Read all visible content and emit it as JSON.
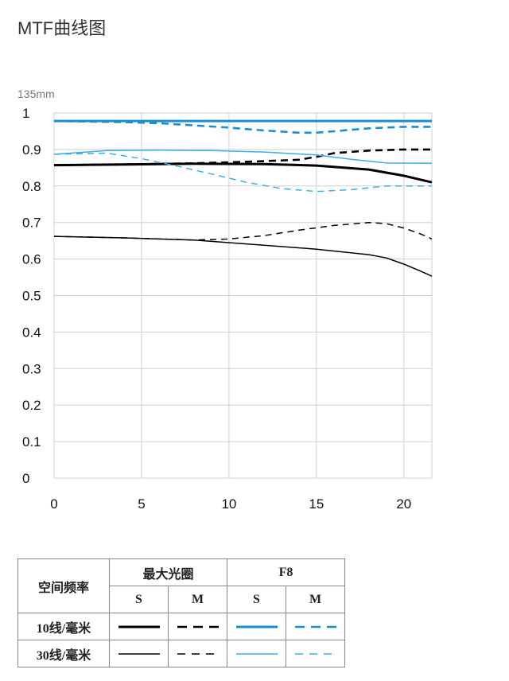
{
  "page": {
    "title": "MTF曲线图"
  },
  "chart_data": {
    "type": "line",
    "focal_label": "135mm",
    "xlim": [
      0,
      21.6
    ],
    "ylim": [
      0,
      1
    ],
    "x_ticks": [
      "0",
      "5",
      "10",
      "15",
      "20"
    ],
    "y_ticks": [
      "1",
      "0.9",
      "0.8",
      "0.7",
      "0.6",
      "0.5",
      "0.4",
      "0.3",
      "0.2",
      "0.1",
      "0"
    ],
    "grid": true,
    "series": [
      {
        "name": "最大光圈 10线/毫米 S",
        "color": "#000000",
        "width": 3,
        "dash": "",
        "x": [
          0,
          4,
          8,
          12,
          15,
          18,
          20,
          21.6
        ],
        "y": [
          0.857,
          0.859,
          0.861,
          0.86,
          0.856,
          0.845,
          0.828,
          0.81
        ]
      },
      {
        "name": "最大光圈 10线/毫米 M",
        "color": "#000000",
        "width": 2.6,
        "dash": "9,6",
        "x": [
          0,
          4,
          8,
          10,
          12,
          14,
          15,
          16,
          18,
          20,
          21.6
        ],
        "y": [
          0.857,
          0.859,
          0.862,
          0.865,
          0.868,
          0.872,
          0.88,
          0.89,
          0.897,
          0.9,
          0.9
        ]
      },
      {
        "name": "最大光圈 30线/毫米 S",
        "color": "#000000",
        "width": 1.5,
        "dash": "",
        "x": [
          0,
          4,
          8,
          12,
          15,
          18,
          19,
          20,
          21,
          21.6
        ],
        "y": [
          0.662,
          0.658,
          0.652,
          0.638,
          0.627,
          0.612,
          0.603,
          0.586,
          0.566,
          0.553
        ]
      },
      {
        "name": "最大光圈 30线/毫米 M",
        "color": "#000000",
        "width": 1.5,
        "dash": "8,6",
        "x": [
          0,
          4,
          8,
          10,
          12,
          14,
          16,
          18,
          19,
          20,
          21,
          21.6
        ],
        "y": [
          0.662,
          0.658,
          0.652,
          0.655,
          0.664,
          0.679,
          0.692,
          0.7,
          0.697,
          0.685,
          0.668,
          0.655
        ]
      },
      {
        "name": "F8 10线/毫米 S",
        "color": "#1a8fd0",
        "width": 3,
        "dash": "",
        "x": [
          0,
          5,
          10,
          15,
          20,
          21.6
        ],
        "y": [
          0.978,
          0.978,
          0.978,
          0.978,
          0.978,
          0.978
        ]
      },
      {
        "name": "F8 10线/毫米 M",
        "color": "#1a8fd0",
        "width": 2.6,
        "dash": "9,6",
        "x": [
          0,
          4,
          6,
          8,
          10,
          12,
          14,
          15,
          16,
          18,
          20,
          21.6
        ],
        "y": [
          0.978,
          0.975,
          0.972,
          0.966,
          0.96,
          0.952,
          0.946,
          0.946,
          0.95,
          0.958,
          0.962,
          0.962
        ]
      },
      {
        "name": "F8 30线/毫米 S",
        "color": "#3aaee6",
        "width": 1.5,
        "dash": "",
        "x": [
          0,
          3,
          6,
          9,
          12,
          15,
          17,
          19,
          21.6
        ],
        "y": [
          0.887,
          0.897,
          0.898,
          0.897,
          0.893,
          0.885,
          0.873,
          0.863,
          0.862
        ]
      },
      {
        "name": "F8 30线/毫米 M",
        "color": "#3aaee6",
        "width": 1.5,
        "dash": "8,6",
        "x": [
          0,
          3,
          5,
          7,
          9,
          11,
          13,
          15,
          17,
          19,
          21.6
        ],
        "y": [
          0.887,
          0.89,
          0.875,
          0.855,
          0.833,
          0.81,
          0.793,
          0.785,
          0.79,
          0.8,
          0.8
        ]
      }
    ]
  },
  "legend": {
    "row_header": "空间频率",
    "col_groups": [
      "最大光圈",
      "F8"
    ],
    "sub_headers": [
      "S",
      "M",
      "S",
      "M"
    ],
    "rows": [
      "10线/毫米",
      "30线/毫米"
    ]
  }
}
